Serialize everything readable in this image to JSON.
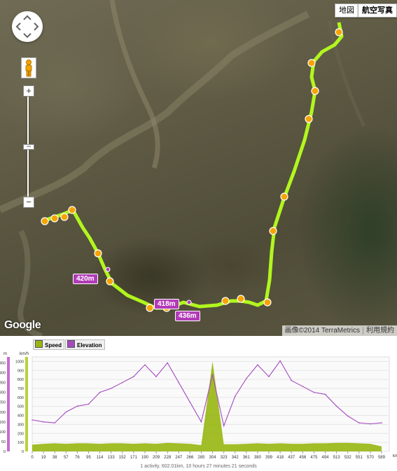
{
  "map": {
    "map_type_buttons": [
      {
        "label": "地図"
      },
      {
        "label": "航空写真"
      }
    ],
    "logo": "Google",
    "credit": "画像©2014 TerraMetrics",
    "terms": "利用規約",
    "elevation_labels": [
      "420m",
      "418m",
      "436m"
    ],
    "route_color": "#b6ff1c",
    "marker_color": "#f5a400"
  },
  "chart": {
    "legend": [
      {
        "label": "Speed",
        "color": "#97b60f"
      },
      {
        "label": "Elevation",
        "color": "#a54ac0"
      }
    ],
    "left_axis_unit": "m",
    "right_axis_unit": "km/h",
    "x_unit": "km",
    "footer": "1 activity, 602.01km, 10 hours 27 minutes 21 seconds"
  },
  "chart_data": {
    "type": "line",
    "x": [
      0,
      19,
      38,
      57,
      76,
      95,
      114,
      133,
      152,
      171,
      190,
      209,
      228,
      247,
      266,
      285,
      304,
      323,
      342,
      361,
      380,
      399,
      418,
      437,
      456,
      475,
      494,
      513,
      532,
      551,
      570,
      589
    ],
    "x_tick_labels": [
      "0",
      "19",
      "38",
      "57",
      "76",
      "95",
      "114",
      "133",
      "152",
      "171",
      "190",
      "209",
      "228",
      "247",
      "266",
      "285",
      "304",
      "323",
      "342",
      "361",
      "380",
      "399",
      "418",
      "437",
      "456",
      "475",
      "494",
      "513",
      "532",
      "551",
      "570",
      "589"
    ],
    "series": [
      {
        "name": "Elevation",
        "axis": "left",
        "values": [
          160,
          150,
          145,
          200,
          230,
          240,
          300,
          320,
          350,
          380,
          440,
          380,
          450,
          350,
          250,
          150,
          390,
          130,
          280,
          370,
          440,
          380,
          460,
          360,
          330,
          300,
          290,
          230,
          180,
          145,
          140,
          145
        ]
      },
      {
        "name": "Speed",
        "axis": "right",
        "values": [
          75,
          85,
          90,
          85,
          90,
          90,
          85,
          90,
          90,
          85,
          90,
          85,
          95,
          90,
          85,
          70,
          1000,
          80,
          80,
          85,
          90,
          85,
          90,
          85,
          85,
          90,
          90,
          95,
          95,
          90,
          85,
          55
        ]
      }
    ],
    "y_left_ticks": [
      "0",
      "50",
      "100",
      "150",
      "200",
      "250",
      "300",
      "350",
      "400",
      "450"
    ],
    "y_right_ticks": [
      "0",
      "100",
      "200",
      "300",
      "400",
      "500",
      "600",
      "700",
      "800",
      "900",
      "1000"
    ],
    "ylim_left": [
      0,
      480
    ],
    "ylim_right": [
      0,
      1050
    ],
    "xlim": [
      0,
      602
    ]
  }
}
